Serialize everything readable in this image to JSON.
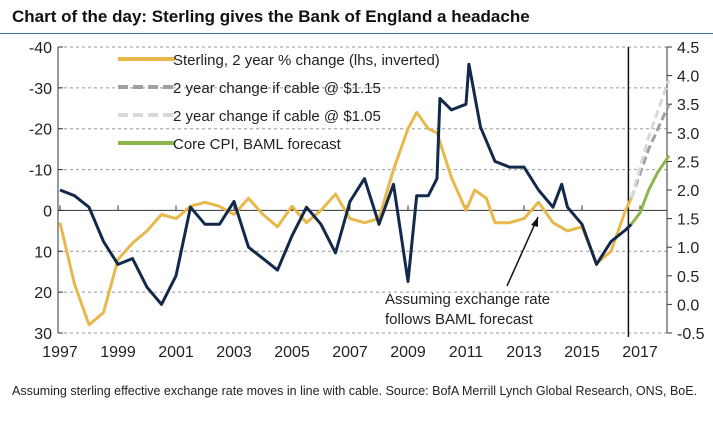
{
  "title": "Chart of the day: Sterling gives the Bank of England a headache",
  "note": "Assuming sterling effective exchange rate moves in line with cable. Source: BofA Merrill Lynch Global Research, ONS, BoE.",
  "chart_data": {
    "type": "line",
    "xlim": [
      1997,
      2018
    ],
    "x_ticks": [
      "1997",
      "1999",
      "2001",
      "2003",
      "2005",
      "2007",
      "2009",
      "2011",
      "2013",
      "2015",
      "2017"
    ],
    "y_left": {
      "lim": [
        -40,
        30
      ],
      "inverted": true,
      "ticks": [
        "-40",
        "-30",
        "-20",
        "-10",
        "0",
        "10",
        "20",
        "30"
      ]
    },
    "y_right": {
      "lim": [
        -0.5,
        4.5
      ],
      "ticks": [
        "4.5",
        "4.0",
        "3.5",
        "3.0",
        "2.5",
        "2.0",
        "1.5",
        "1.0",
        "0.5",
        "0.0",
        "-0.5"
      ]
    },
    "grid": "horizontal dashed",
    "legend_placement": "top-left",
    "vertical_marker_x": 2016.6,
    "annotation": "Assuming exchange rate follows BAML forecast",
    "series": [
      {
        "name": "Sterling, 2 year % change (lhs, inverted)",
        "axis": "left",
        "color": "#e8b84a",
        "style": "solid",
        "x": [
          1997,
          1997.5,
          1998,
          1998.5,
          1999,
          1999.5,
          2000,
          2000.5,
          2001,
          2001.5,
          2002,
          2002.5,
          2003,
          2003.5,
          2004,
          2004.5,
          2005,
          2005.5,
          2006,
          2006.5,
          2007,
          2007.5,
          2008,
          2008.5,
          2009,
          2009.3,
          2009.7,
          2010,
          2010.5,
          2011,
          2011.3,
          2011.7,
          2012,
          2012.5,
          2013,
          2013.5,
          2014,
          2014.5,
          2015,
          2015.5,
          2016,
          2016.5,
          2016.7
        ],
        "y": [
          3,
          18,
          28,
          25,
          12,
          8,
          5,
          1,
          2,
          -1,
          -2,
          -1,
          1,
          -3,
          1,
          4,
          -1,
          3,
          0,
          -4,
          2,
          3,
          2,
          -10,
          -20,
          -24,
          -20,
          -19,
          -8,
          0,
          -5,
          -3,
          3,
          3,
          2,
          -2,
          3,
          5,
          4,
          13,
          10,
          0,
          -3
        ]
      },
      {
        "name": "2 year change if cable @ $1.15",
        "axis": "left",
        "color": "#a0a0a0",
        "style": "dashed",
        "x": [
          2016.7,
          2017.3,
          2018
        ],
        "y": [
          -3,
          -15,
          -26
        ]
      },
      {
        "name": "2 year change if cable @ $1.05",
        "axis": "left",
        "color": "#d8d8d8",
        "style": "dashed",
        "x": [
          2016.7,
          2017.3,
          2018
        ],
        "y": [
          -3,
          -18,
          -32
        ]
      },
      {
        "name": "Core CPI, BAML forecast",
        "axis": "right",
        "color": "#8db54b",
        "style": "solid",
        "x": [
          2016.7,
          2017,
          2017.3,
          2017.6,
          2018
        ],
        "y": [
          1.4,
          1.6,
          2.0,
          2.3,
          2.6
        ]
      },
      {
        "axis": "right",
        "color": "#13294b",
        "style": "solid",
        "x": [
          1997,
          1997.5,
          1998,
          1998.5,
          1999,
          1999.5,
          2000,
          2000.5,
          2001,
          2001.5,
          2002,
          2002.5,
          2003,
          2003.5,
          2004,
          2004.5,
          2005,
          2005.5,
          2006,
          2006.5,
          2007,
          2007.5,
          2008,
          2008.5,
          2009,
          2009.3,
          2009.7,
          2010,
          2010.1,
          2010.5,
          2011,
          2011.1,
          2011.5,
          2012,
          2012.5,
          2013,
          2013.5,
          2014,
          2014.3,
          2014.5,
          2015,
          2015.5,
          2016,
          2016.5,
          2016.7
        ],
        "y": [
          2.0,
          1.9,
          1.7,
          1.1,
          0.7,
          0.8,
          0.3,
          0.0,
          0.5,
          1.7,
          1.4,
          1.4,
          1.8,
          1.0,
          0.8,
          0.6,
          1.2,
          1.7,
          1.4,
          0.9,
          1.8,
          2.2,
          1.4,
          2.1,
          0.4,
          1.9,
          1.9,
          2.2,
          3.6,
          3.4,
          3.5,
          4.2,
          3.1,
          2.5,
          2.4,
          2.4,
          2.0,
          1.7,
          2.1,
          1.7,
          1.4,
          0.7,
          1.1,
          1.3,
          1.4
        ]
      }
    ]
  }
}
